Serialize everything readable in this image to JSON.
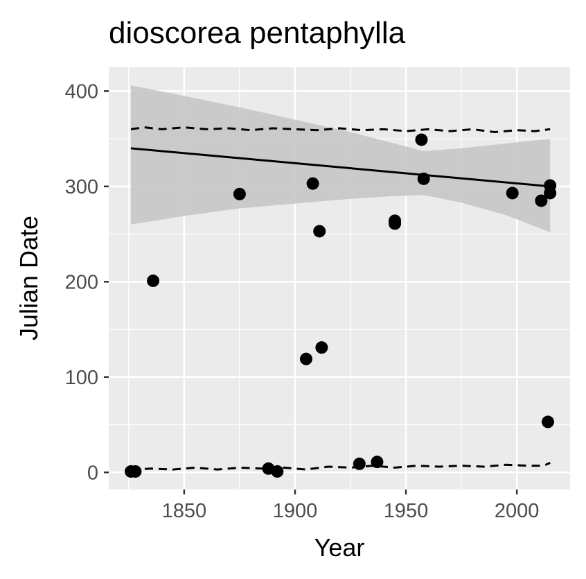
{
  "chart_data": {
    "type": "scatter",
    "title": "dioscorea pentaphylla",
    "xlabel": "Year",
    "ylabel": "Julian Date",
    "xlim": [
      1816,
      2024
    ],
    "ylim": [
      -18,
      425
    ],
    "x_ticks": [
      1850,
      1900,
      1950,
      2000
    ],
    "y_ticks": [
      0,
      100,
      200,
      300,
      400
    ],
    "x_tick_labels": [
      "1850",
      "1900",
      "1950",
      "2000"
    ],
    "y_tick_labels": [
      "0",
      "100",
      "200",
      "300",
      "400"
    ],
    "grid": true,
    "legend": "none",
    "colors": {
      "panel_background": "#ebebeb",
      "grid": "#ffffff",
      "points": "#000000",
      "trend_line": "#000000",
      "confidence_band": "#c7c7c7"
    },
    "points": [
      {
        "x": 1826,
        "y": 1
      },
      {
        "x": 1828,
        "y": 1
      },
      {
        "x": 1836,
        "y": 201
      },
      {
        "x": 1875,
        "y": 292
      },
      {
        "x": 1888,
        "y": 4
      },
      {
        "x": 1892,
        "y": 1
      },
      {
        "x": 1905,
        "y": 119
      },
      {
        "x": 1908,
        "y": 303
      },
      {
        "x": 1911,
        "y": 253
      },
      {
        "x": 1912,
        "y": 131
      },
      {
        "x": 1929,
        "y": 9
      },
      {
        "x": 1937,
        "y": 11
      },
      {
        "x": 1945,
        "y": 264
      },
      {
        "x": 1945,
        "y": 261
      },
      {
        "x": 1957,
        "y": 349
      },
      {
        "x": 1958,
        "y": 308
      },
      {
        "x": 1998,
        "y": 293
      },
      {
        "x": 2011,
        "y": 285
      },
      {
        "x": 2014,
        "y": 53
      },
      {
        "x": 2015,
        "y": 301
      },
      {
        "x": 2015,
        "y": 293
      }
    ],
    "trend_line": [
      {
        "x": 1826,
        "y": 340
      },
      {
        "x": 2015,
        "y": 300
      }
    ],
    "confidence_band": {
      "upper": [
        {
          "x": 1826,
          "y": 406
        },
        {
          "x": 1850,
          "y": 395
        },
        {
          "x": 1875,
          "y": 383
        },
        {
          "x": 1900,
          "y": 370
        },
        {
          "x": 1925,
          "y": 357
        },
        {
          "x": 1945,
          "y": 345
        },
        {
          "x": 1958,
          "y": 337
        },
        {
          "x": 1975,
          "y": 340
        },
        {
          "x": 1995,
          "y": 345
        },
        {
          "x": 2015,
          "y": 350
        }
      ],
      "lower": [
        {
          "x": 2015,
          "y": 252
        },
        {
          "x": 1995,
          "y": 270
        },
        {
          "x": 1975,
          "y": 283
        },
        {
          "x": 1958,
          "y": 291
        },
        {
          "x": 1945,
          "y": 290
        },
        {
          "x": 1925,
          "y": 287
        },
        {
          "x": 1900,
          "y": 282
        },
        {
          "x": 1875,
          "y": 277
        },
        {
          "x": 1850,
          "y": 269
        },
        {
          "x": 1826,
          "y": 260
        }
      ]
    },
    "dashed_upper": [
      {
        "x": 1826,
        "y": 360
      },
      {
        "x": 1832,
        "y": 362
      },
      {
        "x": 1840,
        "y": 360
      },
      {
        "x": 1850,
        "y": 362
      },
      {
        "x": 1860,
        "y": 360
      },
      {
        "x": 1870,
        "y": 361
      },
      {
        "x": 1880,
        "y": 359
      },
      {
        "x": 1890,
        "y": 361
      },
      {
        "x": 1900,
        "y": 360
      },
      {
        "x": 1910,
        "y": 359
      },
      {
        "x": 1920,
        "y": 361
      },
      {
        "x": 1930,
        "y": 359
      },
      {
        "x": 1940,
        "y": 360
      },
      {
        "x": 1950,
        "y": 358
      },
      {
        "x": 1960,
        "y": 360
      },
      {
        "x": 1970,
        "y": 358
      },
      {
        "x": 1980,
        "y": 360
      },
      {
        "x": 1990,
        "y": 357
      },
      {
        "x": 2000,
        "y": 359
      },
      {
        "x": 2008,
        "y": 358
      },
      {
        "x": 2015,
        "y": 360
      }
    ],
    "dashed_lower": [
      {
        "x": 1826,
        "y": 3
      },
      {
        "x": 1835,
        "y": 4
      },
      {
        "x": 1845,
        "y": 3
      },
      {
        "x": 1855,
        "y": 5
      },
      {
        "x": 1865,
        "y": 3
      },
      {
        "x": 1875,
        "y": 5
      },
      {
        "x": 1885,
        "y": 4
      },
      {
        "x": 1895,
        "y": 5
      },
      {
        "x": 1905,
        "y": 3
      },
      {
        "x": 1915,
        "y": 6
      },
      {
        "x": 1925,
        "y": 5
      },
      {
        "x": 1935,
        "y": 7
      },
      {
        "x": 1945,
        "y": 5
      },
      {
        "x": 1955,
        "y": 7
      },
      {
        "x": 1965,
        "y": 6
      },
      {
        "x": 1975,
        "y": 7
      },
      {
        "x": 1985,
        "y": 6
      },
      {
        "x": 1995,
        "y": 8
      },
      {
        "x": 2005,
        "y": 7
      },
      {
        "x": 2012,
        "y": 7
      },
      {
        "x": 2015,
        "y": 10
      }
    ]
  }
}
